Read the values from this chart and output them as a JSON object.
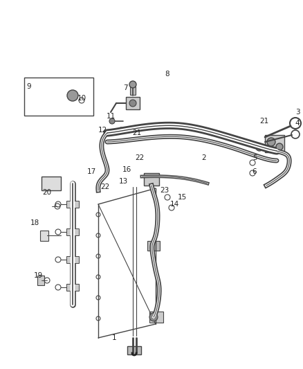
{
  "bg_color": "#ffffff",
  "line_color": "#444444",
  "dark_color": "#222222",
  "gray_color": "#888888",
  "light_gray": "#cccccc",
  "figsize": [
    4.38,
    5.33
  ],
  "dpi": 100
}
